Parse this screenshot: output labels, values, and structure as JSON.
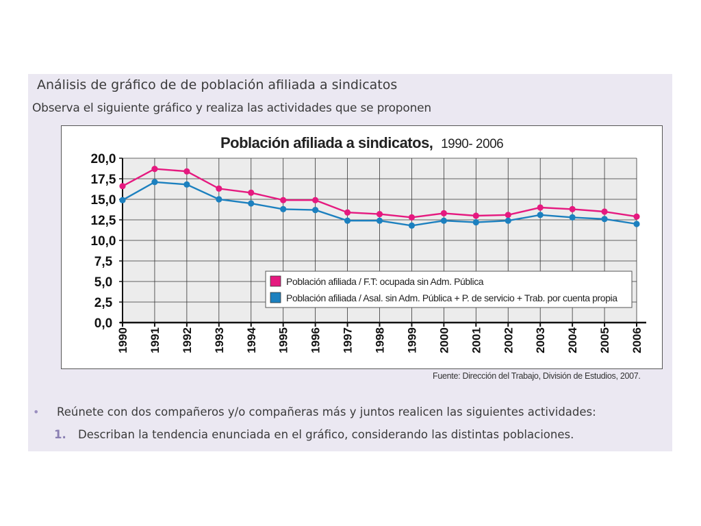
{
  "page": {
    "heading": "Análisis de gráfico de de población afiliada a sindicatos",
    "subheading": "Observa el siguiente gráfico y realiza las actividades que se proponen",
    "source": "Fuente: Dirección del Trabajo, División de Estudios, 2007.",
    "bullet_text": "Reúnete con dos compañeros y/o compañeras más y juntos realicen las siguientes actividades:",
    "bullet_symbol": "•",
    "step_number": "1.",
    "step_text": "Describan la tendencia enunciada en el gráfico, considerando las distintas poblaciones."
  },
  "chart_data": {
    "type": "line",
    "title": "Población afiliada a sindicatos,",
    "title_years": "1990- 2006",
    "xlabel": "",
    "ylabel": "",
    "ylim": [
      0,
      20
    ],
    "y_ticks": [
      "0,0",
      "2,5",
      "5,0",
      "7,5",
      "10,0",
      "12,5",
      "15,0",
      "17,5",
      "20,0"
    ],
    "y_tick_values": [
      0,
      2.5,
      5,
      7.5,
      10,
      12.5,
      15,
      17.5,
      20
    ],
    "x": [
      "1990",
      "1991",
      "1992",
      "1993",
      "1994",
      "1995",
      "1996",
      "1997",
      "1998",
      "1999",
      "2000",
      "2001",
      "2002",
      "2003",
      "2004",
      "2005",
      "2006"
    ],
    "grid": true,
    "legend_position": "inside-bottom-right",
    "series": [
      {
        "name": "Población afiliada / F.T: ocupada sin Adm. Pública",
        "color": "#e5197f",
        "values": [
          16.6,
          18.7,
          18.4,
          16.3,
          15.8,
          14.9,
          14.9,
          13.4,
          13.2,
          12.8,
          13.3,
          13.0,
          13.1,
          14.0,
          13.8,
          13.5,
          12.9
        ]
      },
      {
        "name": "Población afiliada / Asal. sin Adm. Pública + P. de servicio + Trab. por cuenta propia",
        "color": "#1c80bf",
        "values": [
          14.9,
          17.1,
          16.8,
          15.0,
          14.5,
          13.8,
          13.7,
          12.4,
          12.4,
          11.8,
          12.4,
          12.2,
          12.4,
          13.1,
          12.8,
          12.6,
          12.0
        ]
      }
    ]
  }
}
